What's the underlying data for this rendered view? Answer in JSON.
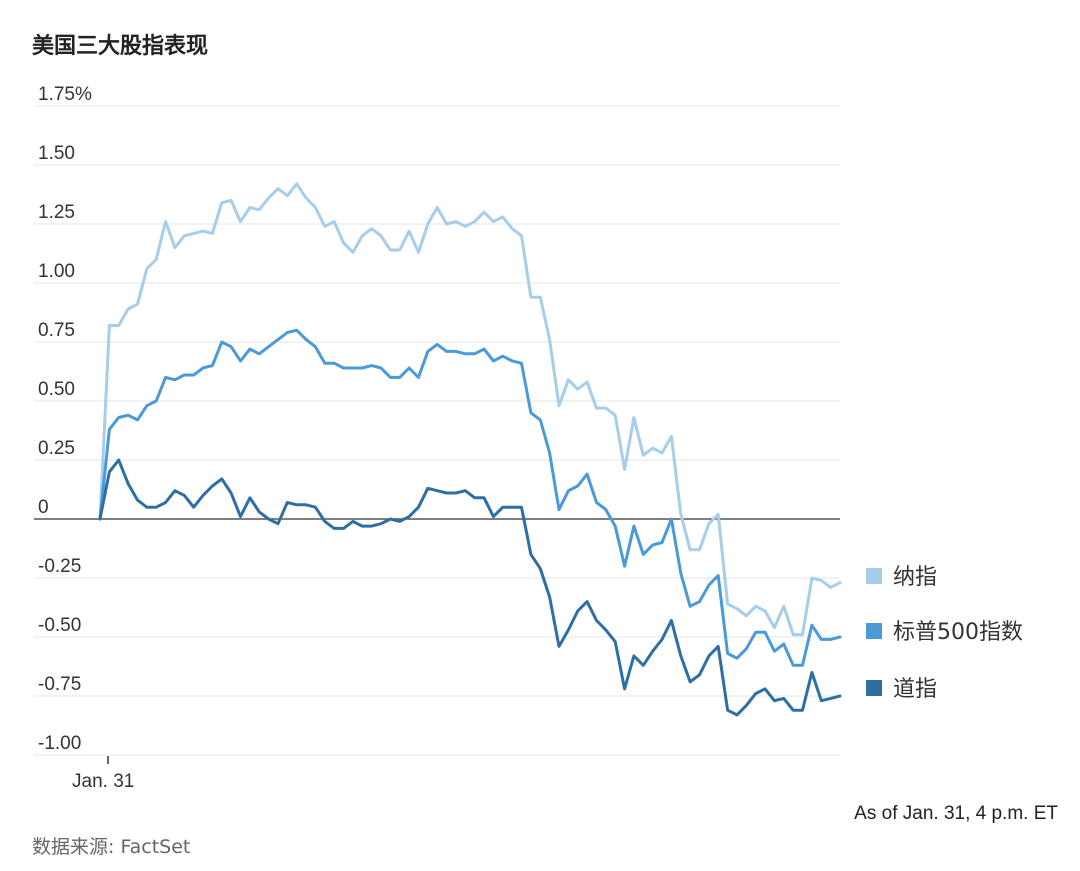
{
  "title": "美国三大股指表现",
  "as_of": "As of Jan. 31, 4 p.m. ET",
  "source": "数据来源: FactSet",
  "chart_data": {
    "type": "line",
    "title": "美国三大股指表现",
    "y_unit": "%",
    "ylim": [
      -1.0,
      1.75
    ],
    "yticks": [
      1.75,
      1.5,
      1.25,
      1.0,
      0.75,
      0.5,
      0.25,
      0,
      -0.25,
      -0.5,
      -0.75,
      -1.0
    ],
    "ytick_labels": [
      "1.75%",
      "1.50",
      "1.25",
      "1.00",
      "0.75",
      "0.50",
      "0.25",
      "0",
      "-0.25",
      "-0.50",
      "-0.75",
      "-1.00"
    ],
    "x_tick_labels": [
      "Jan. 31"
    ],
    "grid": true,
    "legend_position": "right",
    "series": [
      {
        "name": "纳指",
        "color": "#a6cdea",
        "values": [
          0,
          0.82,
          0.82,
          0.89,
          0.91,
          1.06,
          1.1,
          1.26,
          1.15,
          1.2,
          1.21,
          1.22,
          1.21,
          1.34,
          1.35,
          1.26,
          1.32,
          1.31,
          1.36,
          1.4,
          1.37,
          1.42,
          1.36,
          1.32,
          1.24,
          1.26,
          1.17,
          1.13,
          1.2,
          1.23,
          1.2,
          1.14,
          1.14,
          1.22,
          1.13,
          1.25,
          1.32,
          1.25,
          1.26,
          1.24,
          1.26,
          1.3,
          1.26,
          1.28,
          1.23,
          1.2,
          0.94,
          0.94,
          0.76,
          0.48,
          0.59,
          0.55,
          0.58,
          0.47,
          0.47,
          0.44,
          0.21,
          0.43,
          0.27,
          0.3,
          0.28,
          0.35,
          0.02,
          -0.13,
          -0.13,
          -0.02,
          0.02,
          -0.36,
          -0.38,
          -0.41,
          -0.37,
          -0.39,
          -0.46,
          -0.37,
          -0.49,
          -0.49,
          -0.25,
          -0.26,
          -0.29,
          -0.27
        ]
      },
      {
        "name": "标普500指数",
        "color": "#4a9ad9",
        "values": [
          0,
          0.38,
          0.43,
          0.44,
          0.42,
          0.48,
          0.5,
          0.6,
          0.59,
          0.61,
          0.61,
          0.64,
          0.65,
          0.75,
          0.73,
          0.67,
          0.72,
          0.7,
          0.73,
          0.76,
          0.79,
          0.8,
          0.76,
          0.73,
          0.66,
          0.66,
          0.64,
          0.64,
          0.64,
          0.65,
          0.64,
          0.6,
          0.6,
          0.64,
          0.6,
          0.71,
          0.74,
          0.71,
          0.71,
          0.7,
          0.7,
          0.72,
          0.67,
          0.69,
          0.67,
          0.66,
          0.45,
          0.42,
          0.28,
          0.04,
          0.12,
          0.14,
          0.19,
          0.07,
          0.04,
          -0.03,
          -0.2,
          -0.03,
          -0.15,
          -0.11,
          -0.1,
          0.0,
          -0.23,
          -0.37,
          -0.35,
          -0.28,
          -0.24,
          -0.57,
          -0.59,
          -0.55,
          -0.48,
          -0.48,
          -0.56,
          -0.53,
          -0.62,
          -0.62,
          -0.45,
          -0.51,
          -0.51,
          -0.5
        ]
      },
      {
        "name": "道指",
        "color": "#2d6fa5",
        "values": [
          0,
          0.2,
          0.25,
          0.15,
          0.08,
          0.05,
          0.05,
          0.07,
          0.12,
          0.1,
          0.05,
          0.1,
          0.14,
          0.17,
          0.11,
          0.01,
          0.09,
          0.03,
          0.0,
          -0.02,
          0.07,
          0.06,
          0.06,
          0.05,
          -0.01,
          -0.04,
          -0.04,
          -0.01,
          -0.03,
          -0.03,
          -0.02,
          0.0,
          -0.01,
          0.01,
          0.05,
          0.13,
          0.12,
          0.11,
          0.11,
          0.12,
          0.09,
          0.09,
          0.01,
          0.05,
          0.05,
          0.05,
          -0.15,
          -0.21,
          -0.33,
          -0.54,
          -0.47,
          -0.39,
          -0.35,
          -0.43,
          -0.47,
          -0.52,
          -0.72,
          -0.58,
          -0.62,
          -0.56,
          -0.51,
          -0.43,
          -0.58,
          -0.69,
          -0.66,
          -0.58,
          -0.54,
          -0.81,
          -0.83,
          -0.79,
          -0.74,
          -0.72,
          -0.77,
          -0.76,
          -0.81,
          -0.81,
          -0.65,
          -0.77,
          -0.76,
          -0.75
        ]
      }
    ]
  }
}
